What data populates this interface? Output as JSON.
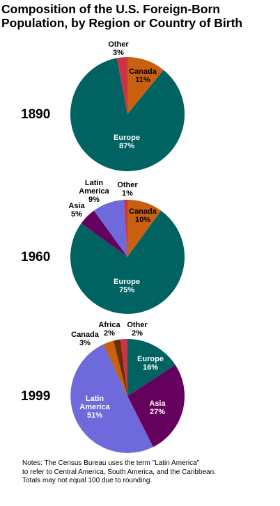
{
  "title_lines": [
    "Composition of the U.S. Foreign-Born",
    "Population, by Region or Country of Birth"
  ],
  "notes_lines": [
    "Notes: The Census Bureau uses the term \"Latin America\"",
    "to refer to Central America, South America, and the Caribbean.",
    "Totals may not equal 100 due to rounding."
  ],
  "colors": {
    "Europe": "#006361",
    "Canada": "#C8600F",
    "Other": "#CC3344",
    "Latin America": "#6F6ADB",
    "Asia": "#66005E",
    "Africa": "#6B2E00"
  },
  "chart_data": [
    {
      "type": "pie",
      "title": "1890",
      "start_angle_deg": 0,
      "slices": [
        {
          "label": [
            "Canada"
          ],
          "value": 11,
          "value_text": "11%",
          "color": "#C8600F"
        },
        {
          "label": [
            "Europe"
          ],
          "value": 87,
          "value_text": "87%",
          "color": "#006361"
        },
        {
          "label": [
            "Other"
          ],
          "value": 3,
          "value_text": "3%",
          "color": "#CC3344"
        }
      ]
    },
    {
      "type": "pie",
      "title": "1960",
      "start_angle_deg": 0,
      "slices": [
        {
          "label": [
            "Canada"
          ],
          "value": 10,
          "value_text": "10%",
          "color": "#C8600F"
        },
        {
          "label": [
            "Europe"
          ],
          "value": 75,
          "value_text": "75%",
          "color": "#006361"
        },
        {
          "label": [
            "Asia"
          ],
          "value": 5,
          "value_text": "5%",
          "color": "#66005E"
        },
        {
          "label": [
            "Latin",
            "America"
          ],
          "value": 9,
          "value_text": "9%",
          "color": "#6F6ADB"
        },
        {
          "label": [
            "Other"
          ],
          "value": 1,
          "value_text": "1%",
          "color": "#CC3344"
        }
      ]
    },
    {
      "type": "pie",
      "title": "1999",
      "start_angle_deg": 0,
      "slices": [
        {
          "label": [
            "Europe"
          ],
          "value": 16,
          "value_text": "16%",
          "color": "#006361"
        },
        {
          "label": [
            "Asia"
          ],
          "value": 27,
          "value_text": "27%",
          "color": "#66005E"
        },
        {
          "label": [
            "Latin",
            "America"
          ],
          "value": 51,
          "value_text": "51%",
          "color": "#6F6ADB"
        },
        {
          "label": [
            "Canada"
          ],
          "value": 3,
          "value_text": "3%",
          "color": "#C8600F"
        },
        {
          "label": [
            "Africa"
          ],
          "value": 2,
          "value_text": "2%",
          "color": "#6B2E00"
        },
        {
          "label": [
            "Other"
          ],
          "value": 2,
          "value_text": "2%",
          "color": "#CC3344"
        }
      ]
    }
  ]
}
